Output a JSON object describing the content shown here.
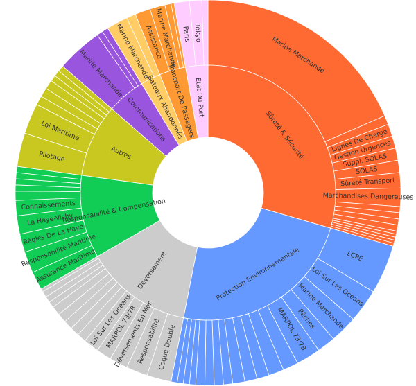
{
  "chart_data": {
    "type": "sunburst",
    "inner": [
      {
        "name": "Sûreté & Sécurité",
        "weight": 115,
        "color": "#ff6a33"
      },
      {
        "name": "Protection Environnementale",
        "weight": 92,
        "color": "#6699ff"
      },
      {
        "name": "Déversement",
        "weight": 53,
        "color": "#cccccc"
      },
      {
        "name": "Responsabilité & Compensation",
        "weight": 41,
        "color": "#11cc55"
      },
      {
        "name": "Autres",
        "weight": 36,
        "color": "#c8c820"
      },
      {
        "name": "Communications",
        "weight": 19,
        "color": "#9955dd"
      },
      {
        "name": "Bateaux Abandonnés",
        "weight": 10,
        "color": "#ffcc66"
      },
      {
        "name": "Transport De Passagers",
        "weight": 13,
        "color": "#ff9933"
      },
      {
        "name": "Etat Du Port",
        "weight": 11,
        "color": "#ffccff"
      }
    ],
    "outer": [
      {
        "parent": 0,
        "name": "Marine Marchande",
        "weight": 72
      },
      {
        "parent": 0,
        "name": "",
        "weight": 3
      },
      {
        "parent": 0,
        "name": "Lignes De Charge",
        "weight": 4
      },
      {
        "parent": 0,
        "name": "Gestion Urgences",
        "weight": 4
      },
      {
        "parent": 0,
        "name": "Suppl. SOLAS",
        "weight": 4
      },
      {
        "parent": 0,
        "name": "SOLAS",
        "weight": 4
      },
      {
        "parent": 0,
        "name": "Sûreté Transport",
        "weight": 5
      },
      {
        "parent": 0,
        "name": "Marchandises Dangereuses",
        "weight": 6
      },
      {
        "parent": 0,
        "name": "",
        "weight": 2
      },
      {
        "parent": 0,
        "name": "",
        "weight": 2
      },
      {
        "parent": 0,
        "name": "",
        "weight": 2
      },
      {
        "parent": 0,
        "name": "",
        "weight": 2
      },
      {
        "parent": 0,
        "name": "",
        "weight": 1
      },
      {
        "parent": 0,
        "name": "",
        "weight": 1
      },
      {
        "parent": 0,
        "name": "",
        "weight": 1
      },
      {
        "parent": 0,
        "name": "",
        "weight": 1
      },
      {
        "parent": 0,
        "name": "",
        "weight": 1
      },
      {
        "parent": 1,
        "name": "LCPE",
        "weight": 16
      },
      {
        "parent": 1,
        "name": "Loi Sur Les Océans",
        "weight": 11
      },
      {
        "parent": 1,
        "name": "Marine Marchande",
        "weight": 9
      },
      {
        "parent": 1,
        "name": "Pêches",
        "weight": 6
      },
      {
        "parent": 1,
        "name": "MARPOL 73/78",
        "weight": 8
      },
      {
        "parent": 1,
        "name": "",
        "weight": 5
      },
      {
        "parent": 1,
        "name": "",
        "weight": 5
      },
      {
        "parent": 1,
        "name": "",
        "weight": 4
      },
      {
        "parent": 1,
        "name": "",
        "weight": 4
      },
      {
        "parent": 1,
        "name": "",
        "weight": 4
      },
      {
        "parent": 1,
        "name": "",
        "weight": 3
      },
      {
        "parent": 1,
        "name": "",
        "weight": 3
      },
      {
        "parent": 1,
        "name": "",
        "weight": 3
      },
      {
        "parent": 1,
        "name": "",
        "weight": 3
      },
      {
        "parent": 1,
        "name": "",
        "weight": 2
      },
      {
        "parent": 1,
        "name": "",
        "weight": 2
      },
      {
        "parent": 1,
        "name": "",
        "weight": 2
      },
      {
        "parent": 1,
        "name": "",
        "weight": 2
      },
      {
        "parent": 2,
        "name": "Coque Double",
        "weight": 8
      },
      {
        "parent": 2,
        "name": "Responsabilité",
        "weight": 7
      },
      {
        "parent": 2,
        "name": "Déversements En Mer",
        "weight": 6
      },
      {
        "parent": 2,
        "name": "MARPOL 73/78",
        "weight": 5
      },
      {
        "parent": 2,
        "name": "Loi Sur Les Océans",
        "weight": 5
      },
      {
        "parent": 2,
        "name": "",
        "weight": 3
      },
      {
        "parent": 2,
        "name": "",
        "weight": 3
      },
      {
        "parent": 2,
        "name": "",
        "weight": 3
      },
      {
        "parent": 2,
        "name": "",
        "weight": 3
      },
      {
        "parent": 2,
        "name": "",
        "weight": 3
      },
      {
        "parent": 2,
        "name": "",
        "weight": 2
      },
      {
        "parent": 2,
        "name": "",
        "weight": 2
      },
      {
        "parent": 2,
        "name": "",
        "weight": 2
      },
      {
        "parent": 2,
        "name": "",
        "weight": 1
      },
      {
        "parent": 3,
        "name": "Assurance Maritime",
        "weight": 6
      },
      {
        "parent": 3,
        "name": "Responsabilité Maritime",
        "weight": 7
      },
      {
        "parent": 3,
        "name": "Règles De La Haye",
        "weight": 6
      },
      {
        "parent": 3,
        "name": "La Haye-Visby",
        "weight": 6
      },
      {
        "parent": 3,
        "name": "Connaissements",
        "weight": 5
      },
      {
        "parent": 3,
        "name": "",
        "weight": 3
      },
      {
        "parent": 3,
        "name": "",
        "weight": 2
      },
      {
        "parent": 3,
        "name": "",
        "weight": 2
      },
      {
        "parent": 3,
        "name": "",
        "weight": 2
      },
      {
        "parent": 3,
        "name": "",
        "weight": 2
      },
      {
        "parent": 4,
        "name": "Pilotage",
        "weight": 11
      },
      {
        "parent": 4,
        "name": "Loi Maritime",
        "weight": 10
      },
      {
        "parent": 4,
        "name": "",
        "weight": 3
      },
      {
        "parent": 4,
        "name": "",
        "weight": 3
      },
      {
        "parent": 4,
        "name": "",
        "weight": 3
      },
      {
        "parent": 4,
        "name": "",
        "weight": 2
      },
      {
        "parent": 4,
        "name": "",
        "weight": 2
      },
      {
        "parent": 4,
        "name": "",
        "weight": 2
      },
      {
        "parent": 5,
        "name": "Marine Marchande",
        "weight": 15
      },
      {
        "parent": 5,
        "name": "",
        "weight": 2
      },
      {
        "parent": 5,
        "name": "",
        "weight": 2
      },
      {
        "parent": 6,
        "name": "Marine Marchande",
        "weight": 7
      },
      {
        "parent": 6,
        "name": "",
        "weight": 3
      },
      {
        "parent": 7,
        "name": "Assistance",
        "weight": 5
      },
      {
        "parent": 7,
        "name": "Marine Marchande",
        "weight": 5
      },
      {
        "parent": 7,
        "name": "",
        "weight": 2
      },
      {
        "parent": 7,
        "name": "",
        "weight": 1
      },
      {
        "parent": 8,
        "name": "Paris",
        "weight": 5
      },
      {
        "parent": 8,
        "name": "Tokyo",
        "weight": 4
      },
      {
        "parent": 8,
        "name": "",
        "weight": 2
      }
    ]
  }
}
